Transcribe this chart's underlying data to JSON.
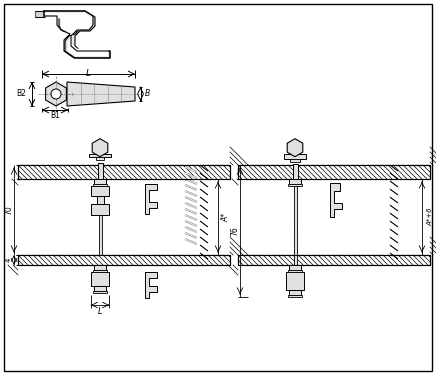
{
  "bg_color": "#ffffff",
  "line_color": "#000000",
  "gray_fill": "#cccccc",
  "light_gray": "#e0e0e0",
  "fig_width": 4.36,
  "fig_height": 3.75,
  "dpi": 100,
  "labels": {
    "L": "L",
    "B": "B",
    "B1": "B1",
    "B2": "B2",
    "70": "70",
    "4": "4",
    "76": "76",
    "A*": "A*",
    "A*+6": "A*+6"
  }
}
